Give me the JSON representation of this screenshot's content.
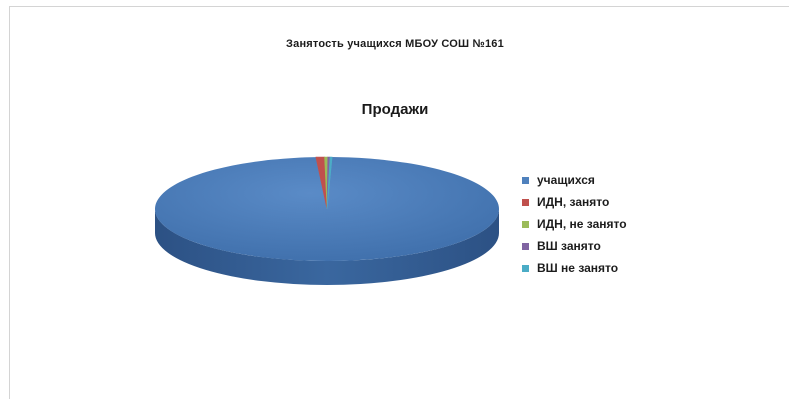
{
  "page": {
    "title": "Занятость учащихся МБОУ СОШ №161"
  },
  "chart_data": {
    "type": "pie",
    "title": "Продажи",
    "categories": [
      "учащихся",
      "ИДН, занято",
      "ИДН, не занято",
      "ВШ занято",
      "ВШ не занято"
    ],
    "values": [
      980,
      8,
      3,
      2,
      2
    ],
    "colors": [
      "#4f81bd",
      "#c0504d",
      "#9bbb59",
      "#8064a2",
      "#4bacc6"
    ],
    "legend_position": "right",
    "style": "3d"
  }
}
